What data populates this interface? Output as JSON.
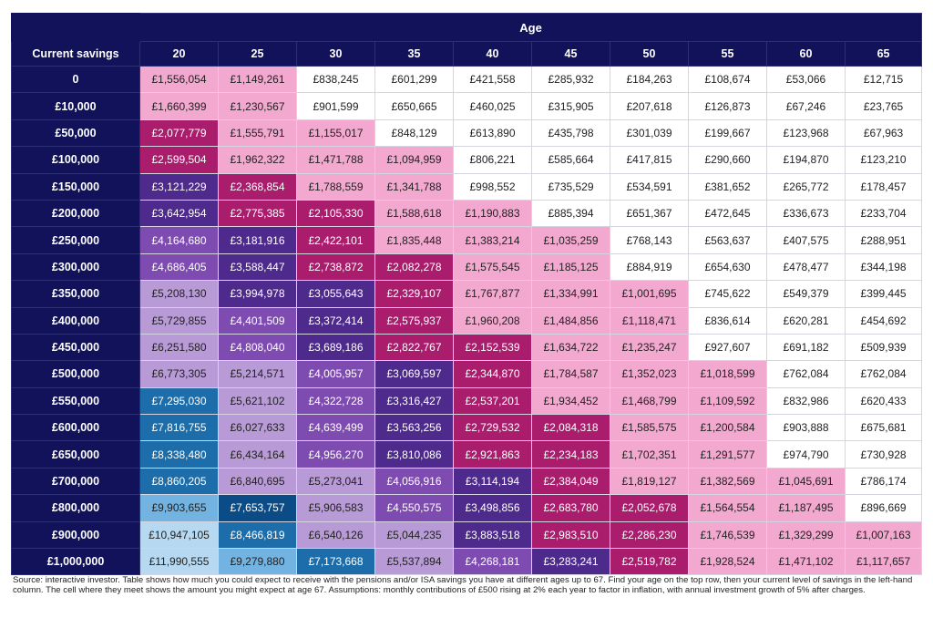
{
  "chart_data": {
    "type": "table",
    "title": "Age",
    "row_header_label": "Current savings",
    "columns": [
      "20",
      "25",
      "30",
      "35",
      "40",
      "45",
      "50",
      "55",
      "60",
      "65"
    ],
    "rows": [
      {
        "label": "0",
        "values": [
          "£1,556,054",
          "£1,149,261",
          "£838,245",
          "£601,299",
          "£421,558",
          "£285,932",
          "£184,263",
          "£108,674",
          "£53,066",
          "£12,715"
        ]
      },
      {
        "label": "£10,000",
        "values": [
          "£1,660,399",
          "£1,230,567",
          "£901,599",
          "£650,665",
          "£460,025",
          "£315,905",
          "£207,618",
          "£126,873",
          "£67,246",
          "£23,765"
        ]
      },
      {
        "label": "£50,000",
        "values": [
          "£2,077,779",
          "£1,555,791",
          "£1,155,017",
          "£848,129",
          "£613,890",
          "£435,798",
          "£301,039",
          "£199,667",
          "£123,968",
          "£67,963"
        ]
      },
      {
        "label": "£100,000",
        "values": [
          "£2,599,504",
          "£1,962,322",
          "£1,471,788",
          "£1,094,959",
          "£806,221",
          "£585,664",
          "£417,815",
          "£290,660",
          "£194,870",
          "£123,210"
        ]
      },
      {
        "label": "£150,000",
        "values": [
          "£3,121,229",
          "£2,368,854",
          "£1,788,559",
          "£1,341,788",
          "£998,552",
          "£735,529",
          "£534,591",
          "£381,652",
          "£265,772",
          "£178,457"
        ]
      },
      {
        "label": "£200,000",
        "values": [
          "£3,642,954",
          "£2,775,385",
          "£2,105,330",
          "£1,588,618",
          "£1,190,883",
          "£885,394",
          "£651,367",
          "£472,645",
          "£336,673",
          "£233,704"
        ]
      },
      {
        "label": "£250,000",
        "values": [
          "£4,164,680",
          "£3,181,916",
          "£2,422,101",
          "£1,835,448",
          "£1,383,214",
          "£1,035,259",
          "£768,143",
          "£563,637",
          "£407,575",
          "£288,951"
        ]
      },
      {
        "label": "£300,000",
        "values": [
          "£4,686,405",
          "£3,588,447",
          "£2,738,872",
          "£2,082,278",
          "£1,575,545",
          "£1,185,125",
          "£884,919",
          "£654,630",
          "£478,477",
          "£344,198"
        ]
      },
      {
        "label": "£350,000",
        "values": [
          "£5,208,130",
          "£3,994,978",
          "£3,055,643",
          "£2,329,107",
          "£1,767,877",
          "£1,334,991",
          "£1,001,695",
          "£745,622",
          "£549,379",
          "£399,445"
        ]
      },
      {
        "label": "£400,000",
        "values": [
          "£5,729,855",
          "£4,401,509",
          "£3,372,414",
          "£2,575,937",
          "£1,960,208",
          "£1,484,856",
          "£1,118,471",
          "£836,614",
          "£620,281",
          "£454,692"
        ]
      },
      {
        "label": "£450,000",
        "values": [
          "£6,251,580",
          "£4,808,040",
          "£3,689,186",
          "£2,822,767",
          "£2,152,539",
          "£1,634,722",
          "£1,235,247",
          "£927,607",
          "£691,182",
          "£509,939"
        ]
      },
      {
        "label": "£500,000",
        "values": [
          "£6,773,305",
          "£5,214,571",
          "£4,005,957",
          "£3,069,597",
          "£2,344,870",
          "£1,784,587",
          "£1,352,023",
          "£1,018,599",
          "£762,084",
          "£762,084"
        ]
      },
      {
        "label": "£550,000",
        "values": [
          "£7,295,030",
          "£5,621,102",
          "£4,322,728",
          "£3,316,427",
          "£2,537,201",
          "£1,934,452",
          "£1,468,799",
          "£1,109,592",
          "£832,986",
          "£620,433"
        ]
      },
      {
        "label": "£600,000",
        "values": [
          "£7,816,755",
          "£6,027,633",
          "£4,639,499",
          "£3,563,256",
          "£2,729,532",
          "£2,084,318",
          "£1,585,575",
          "£1,200,584",
          "£903,888",
          "£675,681"
        ]
      },
      {
        "label": "£650,000",
        "values": [
          "£8,338,480",
          "£6,434,164",
          "£4,956,270",
          "£3,810,086",
          "£2,921,863",
          "£2,234,183",
          "£1,702,351",
          "£1,291,577",
          "£974,790",
          "£730,928"
        ]
      },
      {
        "label": "£700,000",
        "values": [
          "£8,860,205",
          "£6,840,695",
          "£5,273,041",
          "£4,056,916",
          "£3,114,194",
          "£2,384,049",
          "£1,819,127",
          "£1,382,569",
          "£1,045,691",
          "£786,174"
        ]
      },
      {
        "label": "£800,000",
        "values": [
          "£9,903,655",
          "£7,653,757",
          "£5,906,583",
          "£4,550,575",
          "£3,498,856",
          "£2,683,780",
          "£2,052,678",
          "£1,564,554",
          "£1,187,495",
          "£896,669"
        ]
      },
      {
        "label": "£900,000",
        "values": [
          "£10,947,105",
          "£8,466,819",
          "£6,540,126",
          "£5,044,235",
          "£3,883,518",
          "£2,983,510",
          "£2,286,230",
          "£1,746,539",
          "£1,329,299",
          "£1,007,163"
        ]
      },
      {
        "label": "£1,000,000",
        "values": [
          "£11,990,555",
          "£9,279,880",
          "£7,173,668",
          "£5,537,894",
          "£4,268,181",
          "£3,283,241",
          "£2,519,782",
          "£1,928,524",
          "£1,471,102",
          "£1,117,657"
        ]
      }
    ],
    "color_scale": {
      "white": "#ffffff",
      "pink": "#f3a8cf",
      "magenta": "#aa1d6d",
      "purple": "#4d2a8c",
      "violet": "#7e4bb0",
      "lavender": "#b89ad6",
      "blue": "#1c6da9",
      "sky": "#73b3e2",
      "pale_blue": "#b6d8f1",
      "navy": "#0b4c86",
      "header": "#11125a"
    },
    "footnote": "Source: interactive investor. Table shows how much you could expect to receive with the pensions and/or ISA savings you have at different ages up to 67. Find your age on the top row, then your current level of savings in the left-hand column. The cell where they meet shows the amount you might expect at age 67. Assumptions: monthly contributions of £500 rising at 2% each year to factor in inflation, with annual investment growth of 5% after charges."
  }
}
